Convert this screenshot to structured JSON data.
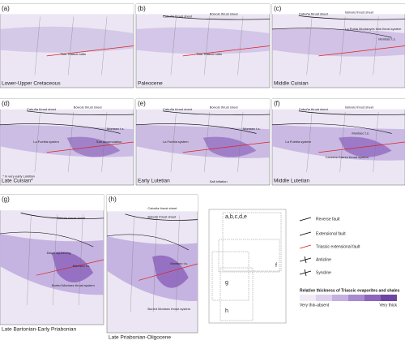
{
  "panels": [
    {
      "letter": "(a)",
      "title": "Lower-Upper Cretaceous",
      "labels": [
        "Thin Triassic salts"
      ]
    },
    {
      "letter": "(b)",
      "title": "Paleocene",
      "labels": [
        "Cabuña thrust sheet",
        "Bóixols thrust sheet",
        "Thin Triassic salts"
      ]
    },
    {
      "letter": "(c)",
      "title": "Middle Cuisian",
      "labels": [
        "Cabuña thrust sheet",
        "Bóixols thrust sheet",
        "La Pobla Montanyès fold-thrust system",
        "Montsec t.s."
      ]
    },
    {
      "letter": "(d)",
      "title": "Late Cuisian*",
      "labels": [
        "Cabuña thrust sheet",
        "Bóixols thrust sheet",
        "Montsec t.s.",
        "La Fuebla system",
        "Salt accumulation",
        "* in very early Lutetian"
      ]
    },
    {
      "letter": "(e)",
      "title": "Early Lutetian",
      "labels": [
        "Cabuña thrust sheet",
        "Bóixols thrust sheet",
        "Montsec t.s.",
        "La Fuebla system",
        "Salt inflation"
      ]
    },
    {
      "letter": "(f)",
      "title": "Middle Lutetian",
      "labels": [
        "Cabuña thrust sheet",
        "Bóixols thrust sheet",
        "Montsec t.s.",
        "La Fuebla system",
        "Caveres-Carreu thrust system"
      ]
    },
    {
      "letter": "(g)",
      "title": "Late Bartonian-Early Priabonian",
      "labels": [
        "Bóixols thrust sheet",
        "Montsec t.s.",
        "Diapir squeezing",
        "Buried Montsec thrust system"
      ]
    },
    {
      "letter": "(h)",
      "title": "Late Priabonian-Oligocene",
      "labels": [
        "Cabuña thrust sheet",
        "Bóixols thrust sheet",
        "Montsec t.s.",
        "Buried Montsec thrust system"
      ]
    }
  ],
  "index_map": {
    "labels": [
      "a,b,c,d,e",
      "f",
      "g",
      "h"
    ]
  },
  "legend": {
    "items": [
      "Reverse fault",
      "Extensional fault",
      "Triassic extensional fault",
      "Anticline",
      "Syncline"
    ],
    "thickness_title": "Relative thickness of Triassic evaporites and shales",
    "thin": "Very thin-absent",
    "thick": "Very thick"
  }
}
